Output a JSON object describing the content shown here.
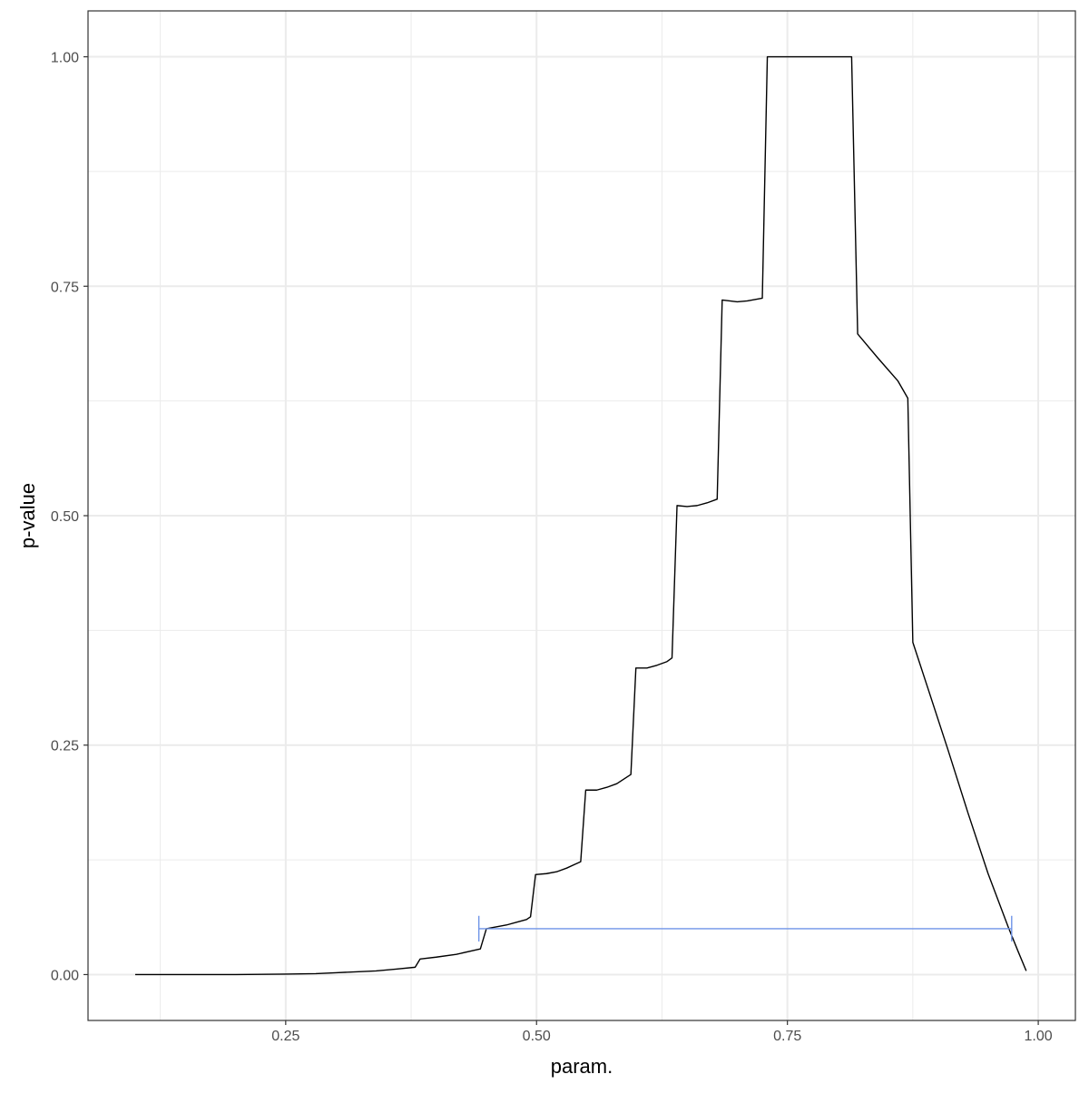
{
  "chart_data": {
    "type": "line",
    "xlabel": "param.",
    "ylabel": "p-value",
    "xlim": [
      0.053,
      1.037
    ],
    "ylim": [
      -0.05,
      1.05
    ],
    "x_ticks": [
      {
        "value": 0.25,
        "label": "0.25"
      },
      {
        "value": 0.5,
        "label": "0.50"
      },
      {
        "value": 0.75,
        "label": "0.75"
      },
      {
        "value": 1.0,
        "label": "1.00"
      }
    ],
    "y_ticks": [
      {
        "value": 0.0,
        "label": "0.00"
      },
      {
        "value": 0.25,
        "label": "0.25"
      },
      {
        "value": 0.5,
        "label": "0.50"
      },
      {
        "value": 0.75,
        "label": "0.75"
      },
      {
        "value": 1.0,
        "label": "1.00"
      }
    ],
    "x_minor_grid": [
      0.125,
      0.375,
      0.625,
      0.875
    ],
    "y_minor_grid": [
      0.125,
      0.375,
      0.625,
      0.875
    ],
    "grid": true,
    "series": [
      {
        "color": "#000000",
        "points": [
          [
            0.1,
            0.0
          ],
          [
            0.15,
            0.0
          ],
          [
            0.2,
            0.0
          ],
          [
            0.25,
            0.0005
          ],
          [
            0.28,
            0.001
          ],
          [
            0.3,
            0.002
          ],
          [
            0.32,
            0.003
          ],
          [
            0.34,
            0.004
          ],
          [
            0.36,
            0.006
          ],
          [
            0.379,
            0.008
          ],
          [
            0.384,
            0.017
          ],
          [
            0.4,
            0.019
          ],
          [
            0.42,
            0.022
          ],
          [
            0.44,
            0.027
          ],
          [
            0.444,
            0.028
          ],
          [
            0.45,
            0.05
          ],
          [
            0.47,
            0.054
          ],
          [
            0.49,
            0.06
          ],
          [
            0.494,
            0.063
          ],
          [
            0.499,
            0.109
          ],
          [
            0.51,
            0.11
          ],
          [
            0.52,
            0.112
          ],
          [
            0.53,
            0.116
          ],
          [
            0.544,
            0.123
          ],
          [
            0.549,
            0.201
          ],
          [
            0.56,
            0.201
          ],
          [
            0.57,
            0.204
          ],
          [
            0.58,
            0.208
          ],
          [
            0.594,
            0.218
          ],
          [
            0.599,
            0.334
          ],
          [
            0.61,
            0.334
          ],
          [
            0.62,
            0.337
          ],
          [
            0.63,
            0.341
          ],
          [
            0.635,
            0.345
          ],
          [
            0.64,
            0.511
          ],
          [
            0.65,
            0.51
          ],
          [
            0.66,
            0.511
          ],
          [
            0.67,
            0.514
          ],
          [
            0.68,
            0.518
          ],
          [
            0.685,
            0.735
          ],
          [
            0.7,
            0.733
          ],
          [
            0.71,
            0.734
          ],
          [
            0.725,
            0.737
          ],
          [
            0.73,
            1.0
          ],
          [
            0.75,
            1.0
          ],
          [
            0.78,
            1.0
          ],
          [
            0.8,
            1.0
          ],
          [
            0.814,
            1.0
          ],
          [
            0.82,
            0.698
          ],
          [
            0.84,
            0.672
          ],
          [
            0.86,
            0.647
          ],
          [
            0.87,
            0.628
          ],
          [
            0.875,
            0.362
          ],
          [
            0.89,
            0.312
          ],
          [
            0.91,
            0.245
          ],
          [
            0.93,
            0.176
          ],
          [
            0.95,
            0.11
          ],
          [
            0.97,
            0.052
          ],
          [
            0.98,
            0.025
          ],
          [
            0.988,
            0.004
          ]
        ]
      }
    ],
    "interval": {
      "color": "#6f94e8",
      "x_start": 0.4425,
      "x_end": 0.9735,
      "y": 0.05,
      "cap_half_height": 0.014
    }
  }
}
